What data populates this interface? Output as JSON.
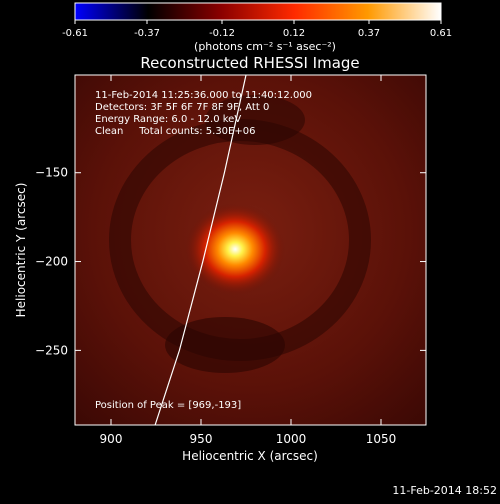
{
  "colorbar": {
    "ticks": [
      "-0.61",
      "-0.37",
      "-0.12",
      "0.12",
      "0.37",
      "0.61"
    ],
    "unit_label": "(photons cm⁻² s⁻¹ asec⁻²)",
    "range": [
      -0.61,
      0.61
    ],
    "gradient": [
      "#0000ff",
      "#000000",
      "#8b0000",
      "#ff2a00",
      "#ff9900",
      "#ffffff"
    ]
  },
  "chart_data": {
    "type": "heatmap",
    "title": "Reconstructed RHESSI Image",
    "xlabel": "Heliocentric X (arcsec)",
    "ylabel": "Heliocentric Y (arcsec)",
    "xlim": [
      880,
      1075
    ],
    "ylim": [
      -292,
      -95
    ],
    "x_ticks": [
      900,
      950,
      1000,
      1050
    ],
    "y_ticks": [
      -150,
      -200,
      -250
    ],
    "peak": {
      "x": 969,
      "y": -193
    },
    "limb_curve": [
      [
        924.5,
        -292
      ],
      [
        938,
        -250
      ],
      [
        951,
        -200
      ],
      [
        963,
        -150
      ],
      [
        975,
        -95
      ]
    ],
    "annotations": [
      "11-Feb-2014 11:25:36.000 to 11:40:12.000",
      "Detectors: 3F 5F 6F 7F 8F 9F, Att 0",
      "Energy Range: 6.0 - 12.0 keV",
      "Clean     Total counts: 5.30E+06"
    ],
    "peak_label": "Position of Peak = [969,-193]"
  },
  "footer": {
    "timestamp": "11-Feb-2014 18:52"
  }
}
